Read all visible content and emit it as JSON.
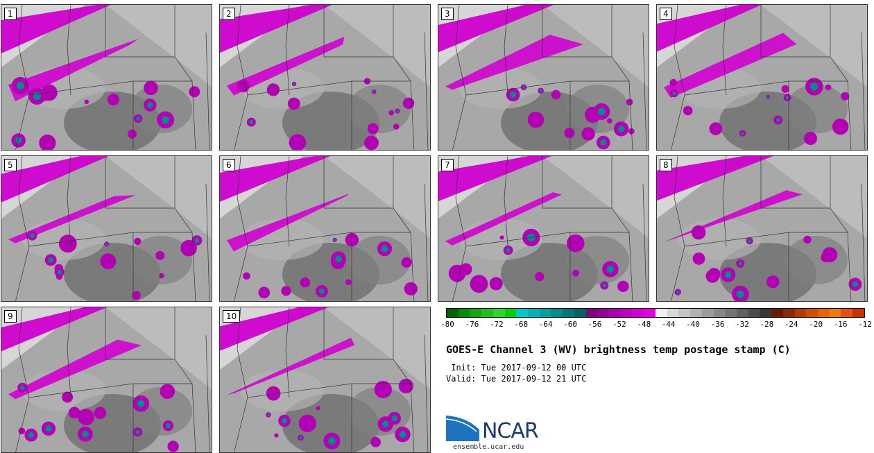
{
  "panels": [
    {
      "label": "1"
    },
    {
      "label": "2"
    },
    {
      "label": "3"
    },
    {
      "label": "4"
    },
    {
      "label": "5"
    },
    {
      "label": "6"
    },
    {
      "label": "7"
    },
    {
      "label": "8"
    },
    {
      "label": "9"
    },
    {
      "label": "10"
    }
  ],
  "colorbar": {
    "colors": [
      "#006400",
      "#0a8a0a",
      "#15a515",
      "#20c020",
      "#2cd82c",
      "#00d000",
      "#00c8c8",
      "#00b4b4",
      "#00a0a0",
      "#008c8c",
      "#007878",
      "#006464",
      "#800080",
      "#960096",
      "#ac00ac",
      "#c000c0",
      "#d400d4",
      "#e600e6",
      "#f0f0f0",
      "#d8d8d8",
      "#c4c4c4",
      "#b0b0b0",
      "#9c9c9c",
      "#888888",
      "#747474",
      "#606060",
      "#4c4c4c",
      "#383838",
      "#6b1a00",
      "#8b2a00",
      "#b03c00",
      "#d04e00",
      "#e86400",
      "#f07a10",
      "#e05010",
      "#c83000"
    ],
    "tick_labels": [
      "-80",
      "-76",
      "-72",
      "-68",
      "-64",
      "-60",
      "-56",
      "-52",
      "-48",
      "-44",
      "-40",
      "-36",
      "-32",
      "-28",
      "-24",
      "-20",
      "-16",
      "-12"
    ]
  },
  "title": "GOES-E Channel 3 (WV) brightness temp postage stamp (C)",
  "init_line": " Init: Tue 2017-09-12 00 UTC",
  "valid_line": "Valid: Tue 2017-09-12 21 UTC",
  "logo": {
    "text": "NCAR",
    "url": "ensemble.ucar.edu"
  }
}
